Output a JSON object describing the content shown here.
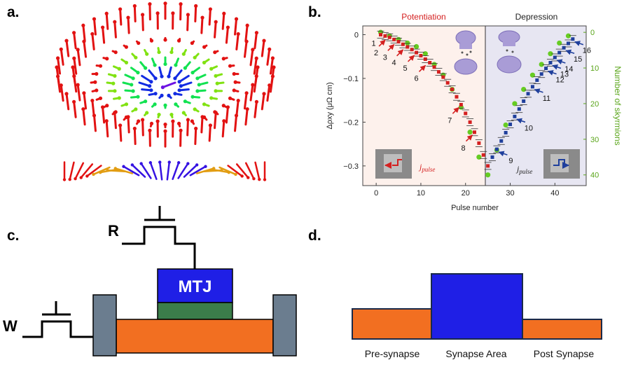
{
  "panels": {
    "a": {
      "label": "a."
    },
    "b": {
      "label": "b."
    },
    "c": {
      "label": "c."
    },
    "d": {
      "label": "d."
    }
  },
  "colors": {
    "potentiation": "#d42020",
    "depression": "#1f3f9c",
    "skyrmion": "#66cc22",
    "orange": "#f26f21",
    "blue_block": "#1f1fe6",
    "green_block": "#3b7d4a",
    "electrode": "#6b7d8f"
  },
  "chart_data": {
    "type": "scatter",
    "regions": {
      "left": "Potentiation",
      "right": "Depression"
    },
    "xlabel": "Pulse number",
    "ylabel_left": "Δρxy (μΩ cm)",
    "ylabel_right": "Number of skyrmions",
    "xlim": [
      -3,
      47
    ],
    "ylim": [
      -0.345,
      0.02
    ],
    "ylim_right": [
      -1.8,
      43
    ],
    "xticks": [
      0,
      10,
      20,
      30,
      40
    ],
    "yticks_left": [
      0,
      -0.1,
      -0.2,
      -0.3
    ],
    "yticks_right": [
      0,
      10,
      20,
      30,
      40
    ],
    "boundary_x": 25,
    "series": [
      {
        "name": "Potentiation",
        "x": [
          1,
          2,
          3,
          4,
          5,
          6,
          7,
          8,
          9,
          10,
          11,
          12,
          13,
          14,
          15,
          16,
          17,
          18,
          19,
          20,
          21,
          22,
          23,
          24,
          25
        ],
        "y": [
          0,
          -0.003,
          -0.006,
          -0.011,
          -0.016,
          -0.022,
          -0.028,
          -0.034,
          -0.041,
          -0.048,
          -0.056,
          -0.064,
          -0.074,
          -0.085,
          -0.097,
          -0.11,
          -0.125,
          -0.142,
          -0.16,
          -0.18,
          -0.2,
          -0.223,
          -0.248,
          -0.275,
          -0.3
        ]
      },
      {
        "name": "Depression",
        "x": [
          26,
          27,
          28,
          29,
          30,
          31,
          32,
          33,
          34,
          35,
          36,
          37,
          38,
          39,
          40,
          41,
          42,
          43,
          44
        ],
        "y": [
          -0.28,
          -0.262,
          -0.243,
          -0.224,
          -0.205,
          -0.187,
          -0.17,
          -0.152,
          -0.135,
          -0.119,
          -0.104,
          -0.09,
          -0.077,
          -0.064,
          -0.052,
          -0.041,
          -0.03,
          -0.02,
          -0.01
        ]
      },
      {
        "name": "Skyrmions",
        "x": [
          1,
          3,
          5,
          7,
          9,
          11,
          13,
          15,
          17,
          19,
          21,
          23,
          25,
          27,
          29,
          31,
          33,
          35,
          37,
          39,
          41,
          43
        ],
        "y": [
          0,
          1,
          2,
          3,
          4,
          6,
          9,
          12,
          16,
          21,
          28,
          35,
          40,
          33,
          26,
          20,
          16,
          12,
          9,
          6,
          3,
          1
        ]
      }
    ],
    "annotations": [
      {
        "text": "1",
        "x": 1
      },
      {
        "text": "2",
        "x": 2.5
      },
      {
        "text": "3",
        "x": 4.5
      },
      {
        "text": "4",
        "x": 6.5
      },
      {
        "text": "5",
        "x": 9
      },
      {
        "text": "6",
        "x": 11.5
      },
      {
        "text": "7",
        "x": 19
      },
      {
        "text": "8",
        "x": 22
      },
      {
        "text": "9",
        "x": 27
      },
      {
        "text": "10",
        "x": 31
      },
      {
        "text": "11",
        "x": 35
      },
      {
        "text": "12",
        "x": 38
      },
      {
        "text": "13",
        "x": 39
      },
      {
        "text": "14",
        "x": 40
      },
      {
        "text": "15",
        "x": 42
      },
      {
        "text": "16",
        "x": 44
      }
    ],
    "inset_labels": {
      "left": "j",
      "left_sub": "pulse",
      "right": "j",
      "right_sub": "pulse"
    }
  },
  "circuit": {
    "read_label": "R",
    "write_label": "W",
    "mtj_label": "MTJ"
  },
  "synapse": {
    "pre": "Pre-synapse",
    "area": "Synapse Area",
    "post": "Post Synapse"
  }
}
